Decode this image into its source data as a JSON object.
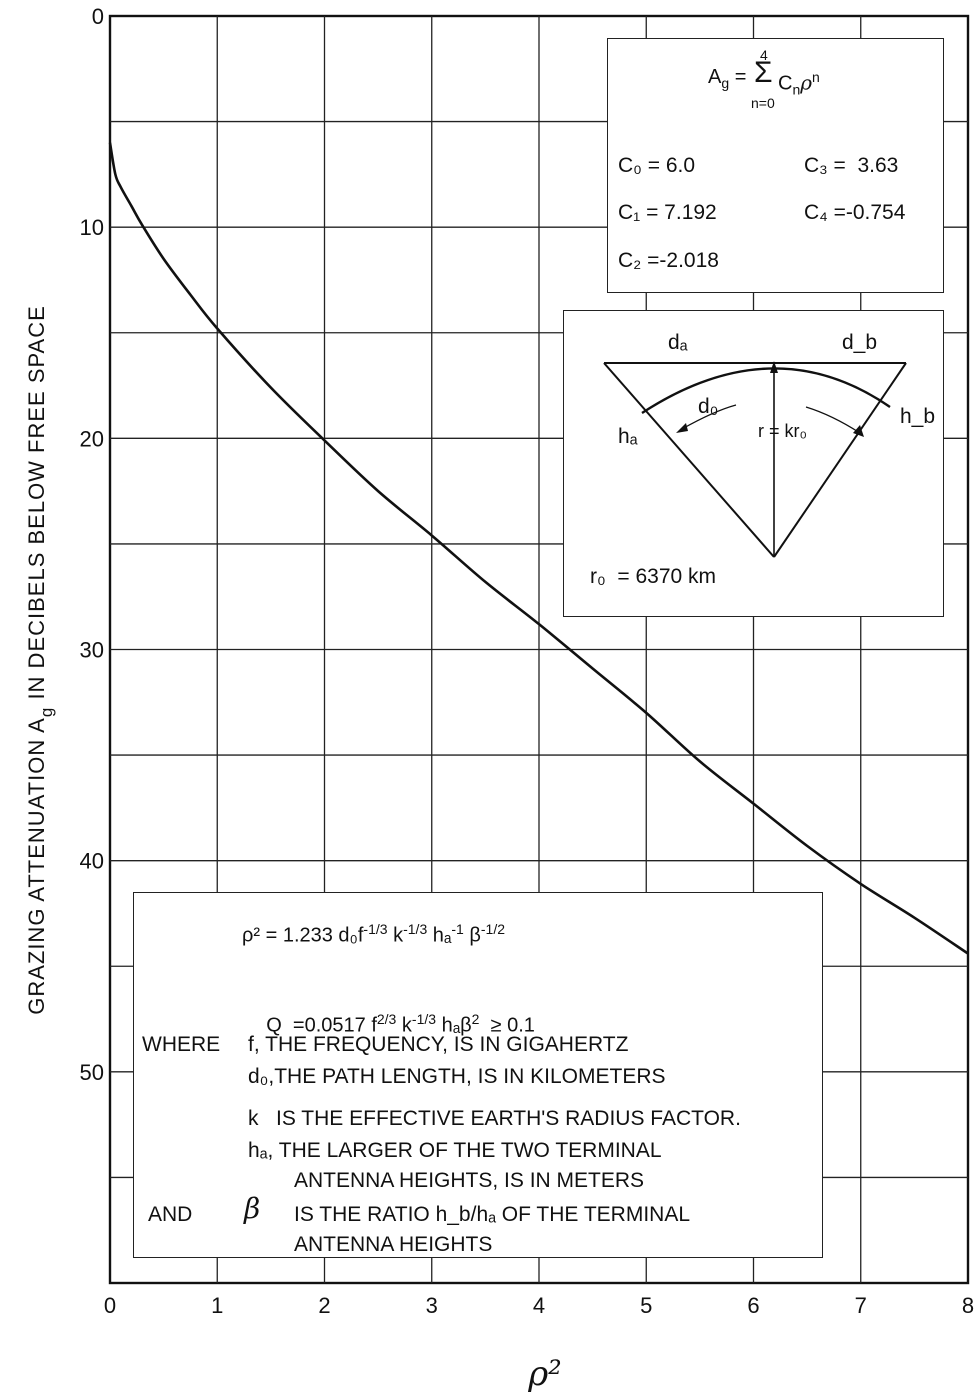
{
  "chart_data": {
    "type": "line",
    "xlabel": "ρ²",
    "ylabel": "GRAZING ATTENUATION A_g IN DECIBELS BELOW FREE SPACE",
    "ylabel_parts": {
      "pre": "GRAZING ATTENUATION A",
      "sub": "g",
      "post": " IN DECIBELS BELOW FREE SPACE"
    },
    "xlim": [
      0,
      8
    ],
    "ylim": [
      0,
      60
    ],
    "y_inverted": true,
    "grid": true,
    "x_ticks": [
      "0",
      "1",
      "2",
      "3",
      "4",
      "5",
      "6",
      "7",
      "8"
    ],
    "y_ticks": [
      "0",
      "10",
      "20",
      "30",
      "40",
      "50"
    ],
    "coefficients": {
      "C0": 6.0,
      "C1": 7.192,
      "C2": -2.018,
      "C3": 3.63,
      "C4": -0.754
    },
    "series": [
      {
        "x": [
          0,
          0.05,
          0.1,
          0.2,
          0.3,
          0.5,
          0.75,
          1,
          1.5,
          2,
          2.5,
          3,
          3.5,
          4,
          4.5,
          5,
          5.5,
          6,
          6.5,
          7,
          7.5,
          8
        ],
        "y": [
          6.0,
          7.5,
          8.1,
          9.0,
          9.9,
          11.5,
          13.2,
          14.8,
          17.6,
          20.1,
          22.5,
          24.6,
          26.8,
          28.8,
          30.9,
          33.0,
          35.3,
          37.3,
          39.3,
          41.1,
          42.7,
          44.4
        ]
      }
    ]
  },
  "formula_box": {
    "lhs": "A",
    "lhs_sub": "g",
    "eq": "=",
    "sum_top": "4",
    "sum": "Σ",
    "sum_bottom": "n=0",
    "term": "C",
    "term_sub": "n",
    "rho": "ρ",
    "exp": "n",
    "c0": "C₀ = 6.0",
    "c1": "C₁ = 7.192",
    "c2": "C₂ =-2.018",
    "c3": "C₃ =  3.63",
    "c4": "C₄ =-0.754"
  },
  "geometry_box": {
    "da": "dₐ",
    "db": "d_b",
    "do": "d₀",
    "ha": "hₐ",
    "hb": "h_b",
    "r": "r = kr₀",
    "r0": "r₀  = 6370 km"
  },
  "notes_box": {
    "rho_eq": "ρ² = 1.233  d₀f",
    "rho_exp1": "-1/3",
    "rho_k": " k",
    "rho_exp2": "-1/3",
    "rho_h": " hₐ",
    "rho_exp3": "-1",
    "rho_beta": " β",
    "rho_exp4": "-1/2",
    "q_eq": "Q  =0.0517 f",
    "q_exp1": "2/3",
    "q_k": " k",
    "q_exp2": "-1/3",
    "q_h": " hₐβ",
    "q_exp3": "2",
    "q_tail": "  ≥ 0.1",
    "where": "WHERE",
    "line1": "f,  THE FREQUENCY, IS IN GIGAHERTZ",
    "line2": "d₀,THE PATH LENGTH, IS IN KILOMETERS",
    "line3": "k   IS THE EFFECTIVE EARTH'S RADIUS FACTOR.",
    "line4": "hₐ, THE LARGER OF THE TWO TERMINAL",
    "line5": "ANTENNA HEIGHTS, IS IN METERS",
    "and": "AND",
    "beta": "β",
    "line6": "IS THE RATIO h_b/hₐ OF THE TERMINAL",
    "line7": "ANTENNA  HEIGHTS"
  }
}
